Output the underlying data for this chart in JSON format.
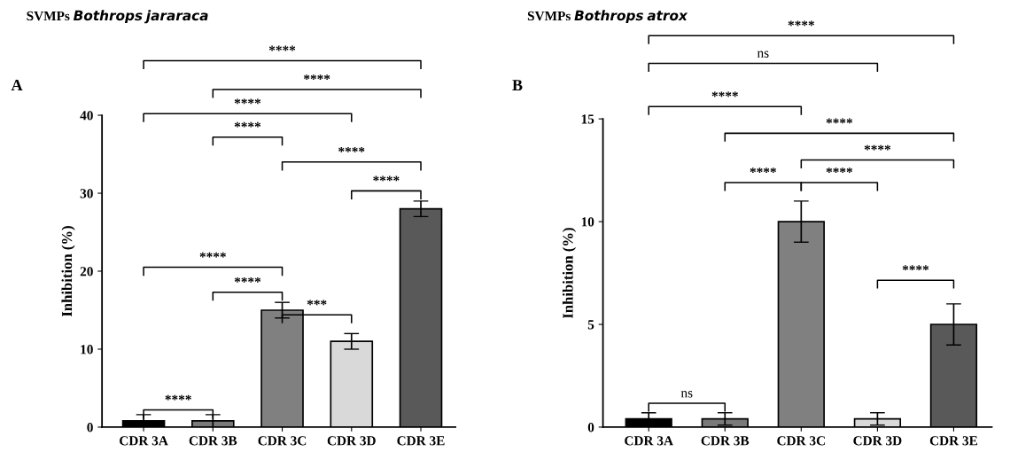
{
  "chart_data": [
    {
      "type": "bar",
      "title": "SVMPs Bothrops jararaca",
      "ylabel": "Inhibition (%)",
      "categories": [
        "CDR 3A",
        "CDR 3B",
        "CDR 3C",
        "CDR 3D",
        "CDR 3E"
      ],
      "values": [
        0.8,
        0.8,
        15,
        11,
        28
      ],
      "errors": [
        0.8,
        0.8,
        1,
        1,
        1
      ],
      "colors": [
        "#000000",
        "#7a7a7a",
        "#808080",
        "#d9d9d9",
        "#595959"
      ],
      "ylim": [
        0,
        40
      ],
      "yticks": [
        0,
        10,
        20,
        30,
        40
      ],
      "grid": false,
      "legend": false,
      "annotations": [
        "A",
        "****",
        "****",
        "****",
        "****",
        "****",
        "****",
        "****",
        "****",
        "***",
        "****"
      ]
    },
    {
      "type": "bar",
      "title": "SVMPs Bothrops atrox",
      "ylabel": "Inhibition (%)",
      "categories": [
        "CDR 3A",
        "CDR 3B",
        "CDR 3C",
        "CDR 3D",
        "CDR 3E"
      ],
      "values": [
        0.4,
        0.4,
        10,
        0.4,
        5
      ],
      "errors": [
        0.3,
        0.3,
        1,
        0.3,
        1
      ],
      "colors": [
        "#000000",
        "#7a7a7a",
        "#808080",
        "#d9d9d9",
        "#595959"
      ],
      "ylim": [
        0,
        15
      ],
      "yticks": [
        0,
        5,
        10,
        15
      ],
      "grid": false,
      "legend": false,
      "annotations": [
        "B",
        "****",
        "ns",
        "****",
        "****",
        "****",
        "****",
        "****",
        "****",
        "ns"
      ]
    }
  ]
}
